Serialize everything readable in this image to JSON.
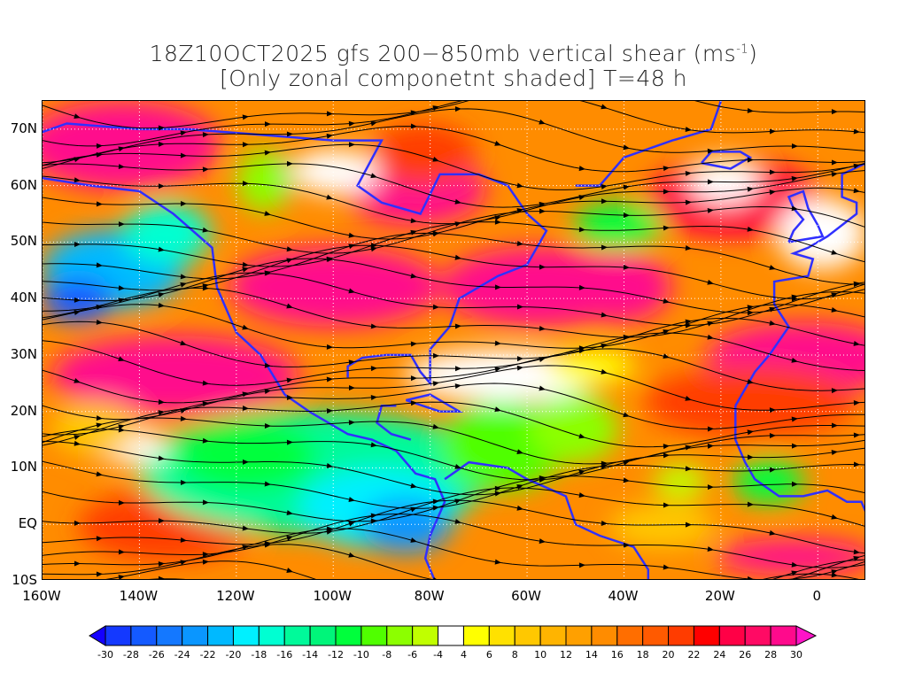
{
  "title": {
    "line1": "18Z10OCT2025 gfs 200−850mb vertical shear (ms",
    "line1_sup": "-1",
    "line1_end": ")",
    "line2": "[Only zonal componetnt shaded] T=48 h"
  },
  "map": {
    "lon_range": [
      -160,
      10
    ],
    "lat_range": [
      -10,
      75
    ],
    "x_ticks": [
      {
        "lon": -160,
        "label": "160W"
      },
      {
        "lon": -140,
        "label": "140W"
      },
      {
        "lon": -120,
        "label": "120W"
      },
      {
        "lon": -100,
        "label": "100W"
      },
      {
        "lon": -80,
        "label": "80W"
      },
      {
        "lon": -60,
        "label": "60W"
      },
      {
        "lon": -40,
        "label": "40W"
      },
      {
        "lon": -20,
        "label": "20W"
      },
      {
        "lon": 0,
        "label": "0"
      }
    ],
    "y_ticks": [
      {
        "lat": 70,
        "label": "70N"
      },
      {
        "lat": 60,
        "label": "60N"
      },
      {
        "lat": 50,
        "label": "50N"
      },
      {
        "lat": 40,
        "label": "40N"
      },
      {
        "lat": 30,
        "label": "30N"
      },
      {
        "lat": 20,
        "label": "20N"
      },
      {
        "lat": 10,
        "label": "10N"
      },
      {
        "lat": 0,
        "label": "EQ"
      },
      {
        "lat": -10,
        "label": "10S"
      }
    ]
  },
  "colorbar": {
    "labels": [
      "-30",
      "-28",
      "-26",
      "-24",
      "-22",
      "-20",
      "-18",
      "-16",
      "-14",
      "-12",
      "-10",
      "-8",
      "-6",
      "-4",
      "4",
      "6",
      "8",
      "10",
      "12",
      "14",
      "16",
      "18",
      "20",
      "22",
      "24",
      "26",
      "28",
      "30"
    ],
    "low_color": "#1400ff",
    "high_color": "#ff14c8",
    "colors": [
      "#1439ff",
      "#145aff",
      "#1478ff",
      "#0a96ff",
      "#00b9ff",
      "#00f0ff",
      "#00ffd2",
      "#00fa9a",
      "#00f57a",
      "#00ff3c",
      "#50ff00",
      "#8cff00",
      "#c0ff00",
      "#ffffff",
      "#ffff00",
      "#ffe100",
      "#ffc800",
      "#ffb400",
      "#ffa000",
      "#ff8c00",
      "#ff6e00",
      "#ff5a00",
      "#ff3c00",
      "#ff0000",
      "#ff0046",
      "#ff0a64",
      "#ff0a8c"
    ]
  }
}
